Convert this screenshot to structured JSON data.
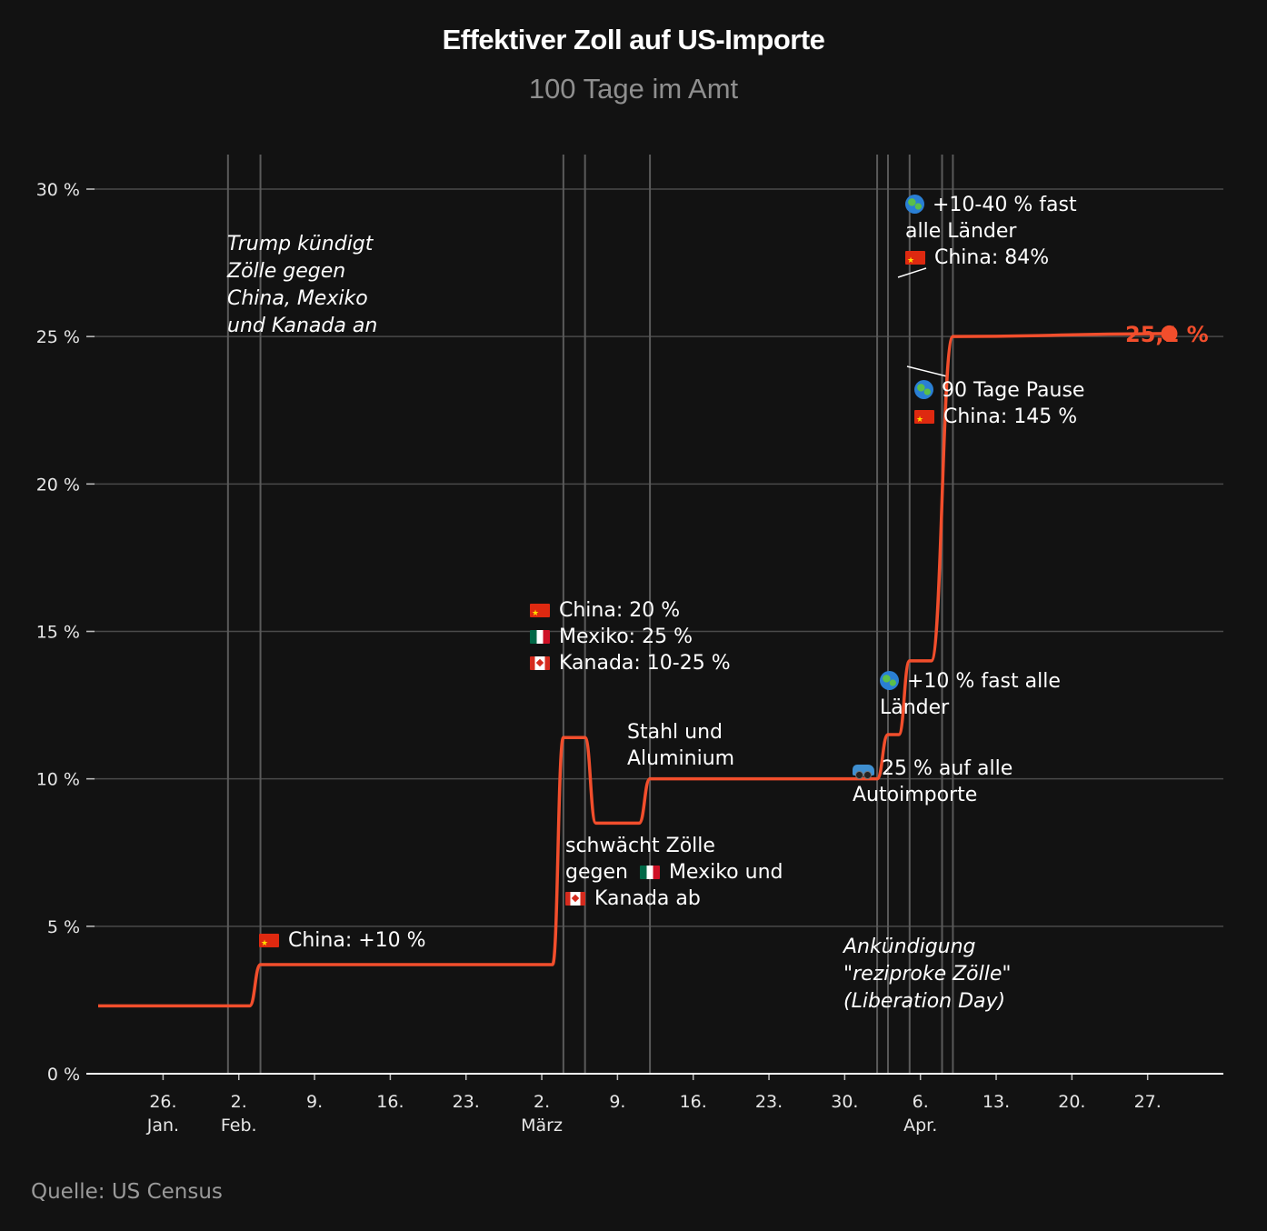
{
  "title": "Effektiver Zoll auf US-Importe",
  "subtitle": "100 Tage im Amt",
  "source": "Quelle: US Census",
  "colors": {
    "background": "#121212",
    "line": "#f24e2c",
    "grid": "#4a4a4a",
    "text": "#ffffff",
    "muted": "#8f8f8f"
  },
  "chart_data": {
    "type": "line",
    "title": "Effektiver Zoll auf US-Importe",
    "subtitle": "100 Tage im Amt",
    "xlabel": "",
    "ylabel": "",
    "xlim": [
      "2025-01-20",
      "2025-05-04"
    ],
    "ylim": [
      0,
      31
    ],
    "grid": true,
    "y_ticks": [
      {
        "value": 0,
        "label": "0 %"
      },
      {
        "value": 5,
        "label": "5 %"
      },
      {
        "value": 10,
        "label": "10 %"
      },
      {
        "value": 15,
        "label": "15 %"
      },
      {
        "value": 20,
        "label": "20 %"
      },
      {
        "value": 25,
        "label": "25 %"
      },
      {
        "value": 30,
        "label": "30 %"
      }
    ],
    "x_ticks": [
      {
        "date": "2025-01-26",
        "label": "26.",
        "sublabel": "Jan."
      },
      {
        "date": "2025-02-02",
        "label": "2.",
        "sublabel": "Feb."
      },
      {
        "date": "2025-02-09",
        "label": "9.",
        "sublabel": ""
      },
      {
        "date": "2025-02-16",
        "label": "16.",
        "sublabel": ""
      },
      {
        "date": "2025-02-23",
        "label": "23.",
        "sublabel": ""
      },
      {
        "date": "2025-03-02",
        "label": "2.",
        "sublabel": "März"
      },
      {
        "date": "2025-03-09",
        "label": "9.",
        "sublabel": ""
      },
      {
        "date": "2025-03-16",
        "label": "16.",
        "sublabel": ""
      },
      {
        "date": "2025-03-23",
        "label": "23.",
        "sublabel": ""
      },
      {
        "date": "2025-03-30",
        "label": "30.",
        "sublabel": ""
      },
      {
        "date": "2025-04-06",
        "label": "6.",
        "sublabel": "Apr."
      },
      {
        "date": "2025-04-13",
        "label": "13.",
        "sublabel": ""
      },
      {
        "date": "2025-04-20",
        "label": "20.",
        "sublabel": ""
      },
      {
        "date": "2025-04-27",
        "label": "27.",
        "sublabel": ""
      }
    ],
    "event_lines": [
      "2025-02-01",
      "2025-02-04",
      "2025-03-04",
      "2025-03-06",
      "2025-03-12",
      "2025-04-02",
      "2025-04-03",
      "2025-04-05",
      "2025-04-08",
      "2025-04-09"
    ],
    "series": [
      {
        "points": [
          {
            "date": "2025-01-20",
            "value": 2.3
          },
          {
            "date": "2025-02-03",
            "value": 2.3
          },
          {
            "date": "2025-02-04",
            "value": 3.7
          },
          {
            "date": "2025-03-03",
            "value": 3.7
          },
          {
            "date": "2025-03-04",
            "value": 11.4
          },
          {
            "date": "2025-03-06",
            "value": 11.4
          },
          {
            "date": "2025-03-07",
            "value": 8.5
          },
          {
            "date": "2025-03-11",
            "value": 8.5
          },
          {
            "date": "2025-03-12",
            "value": 10.0
          },
          {
            "date": "2025-04-02",
            "value": 10.0
          },
          {
            "date": "2025-04-03",
            "value": 11.5
          },
          {
            "date": "2025-04-04",
            "value": 11.5
          },
          {
            "date": "2025-04-05",
            "value": 14.0
          },
          {
            "date": "2025-04-07",
            "value": 14.0
          },
          {
            "date": "2025-04-09",
            "value": 25.0
          },
          {
            "date": "2025-04-29",
            "value": 25.1
          }
        ]
      }
    ],
    "end_label": "25,1 %",
    "annotations": {
      "a1": {
        "lines": [
          "Trump kündigt",
          "Zölle gegen",
          "China, Mexiko",
          "und Kanada an"
        ]
      },
      "a2": {
        "flag": "china-flag",
        "text": "China: +10 %"
      },
      "a3": {
        "lines": [
          {
            "flag": "china-flag",
            "text": "China: 20 %"
          },
          {
            "flag": "mexico-flag",
            "text": "Mexiko: 25 %"
          },
          {
            "flag": "canada-flag",
            "text": "Kanada: 10-25 %"
          }
        ]
      },
      "a4": {
        "line1": "schwächt Zölle",
        "line2_pre": "gegen",
        "line2_post": "Mexiko und",
        "line3": "Kanada ab"
      },
      "a5": {
        "lines": [
          "Stahl und",
          "Aluminium"
        ]
      },
      "a6": {
        "line1": "25 % auf alle",
        "line2": "Autoimporte"
      },
      "a7": {
        "line1": "+10 % fast alle",
        "line2": "Länder"
      },
      "a8": {
        "lines": [
          "Ankündigung",
          "\"reziproke Zölle\"",
          "(Liberation Day)"
        ]
      },
      "a9": {
        "line1": "+10-40 % fast",
        "line2": "alle Länder",
        "line3": "China: 84%"
      },
      "a10": {
        "line1": "90 Tage Pause",
        "line2": "China: 145 %"
      }
    }
  }
}
